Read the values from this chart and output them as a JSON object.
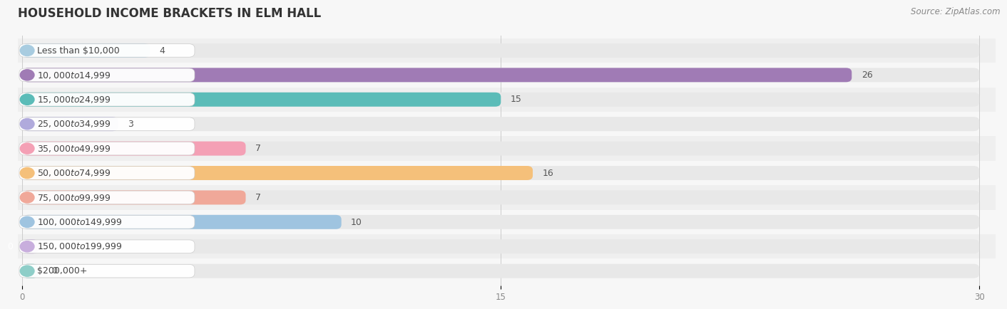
{
  "title": "HOUSEHOLD INCOME BRACKETS IN ELM HALL",
  "source": "Source: ZipAtlas.com",
  "categories": [
    "Less than $10,000",
    "$10,000 to $14,999",
    "$15,000 to $24,999",
    "$25,000 to $34,999",
    "$35,000 to $49,999",
    "$50,000 to $74,999",
    "$75,000 to $99,999",
    "$100,000 to $149,999",
    "$150,000 to $199,999",
    "$200,000+"
  ],
  "values": [
    4,
    26,
    15,
    3,
    7,
    16,
    7,
    10,
    0,
    0
  ],
  "bar_colors": [
    "#a8cce0",
    "#a07bb5",
    "#5bbcb8",
    "#b0aadc",
    "#f4a0b5",
    "#f5c07a",
    "#f0a899",
    "#9fc4e0",
    "#c8aedd",
    "#8ecec8"
  ],
  "background_color": "#f7f7f7",
  "bar_background_color": "#e8e8e8",
  "row_background_even": "#efefef",
  "row_background_odd": "#f7f7f7",
  "xlim": [
    0,
    30
  ],
  "xticks": [
    0,
    15,
    30
  ],
  "bar_height": 0.58,
  "title_fontsize": 12,
  "source_fontsize": 8.5,
  "label_fontsize": 9,
  "value_fontsize": 9
}
